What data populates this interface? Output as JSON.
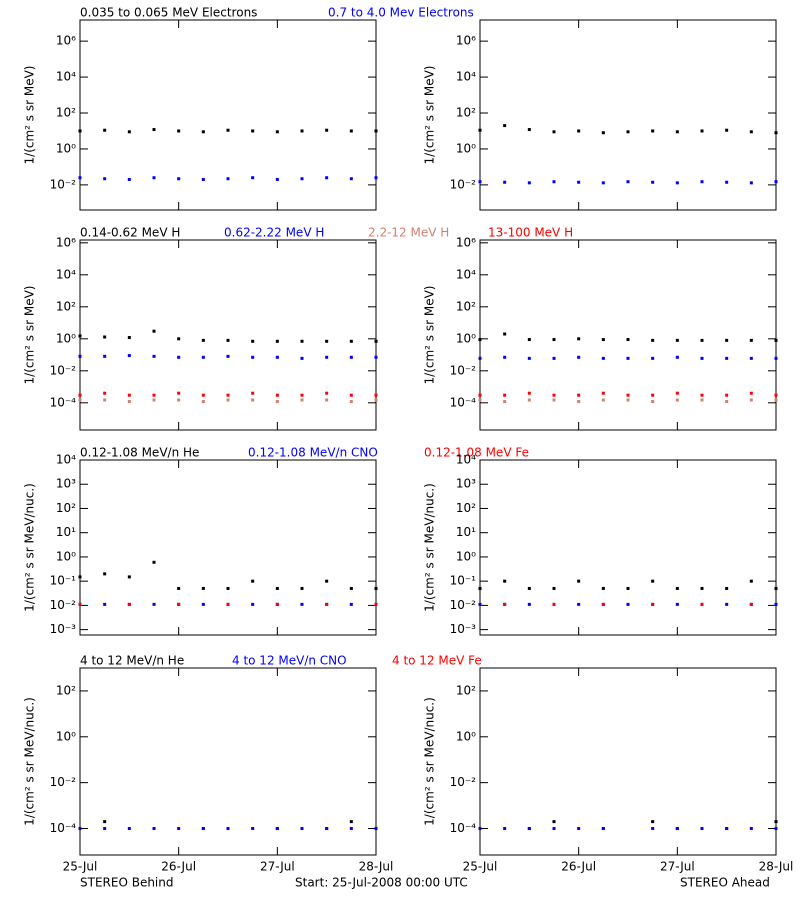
{
  "chart_data": [
    {
      "type": "scatter",
      "log_y": true,
      "ylabel": "1/(cm² s sr MeV)",
      "ylim": [
        0.0004,
        15000000
      ],
      "yticks": [
        {
          "value": 0.01,
          "label": "10⁻²"
        },
        {
          "value": 1,
          "label": "10⁰"
        },
        {
          "value": 100,
          "label": "10²"
        },
        {
          "value": 10000,
          "label": "10⁴"
        },
        {
          "value": 1000000,
          "label": "10⁶"
        }
      ],
      "xlim": [
        0,
        72
      ],
      "xticks": [
        0,
        24,
        48,
        72
      ],
      "x": [
        0,
        6,
        12,
        18,
        24,
        30,
        36,
        42,
        48,
        54,
        60,
        66,
        72
      ],
      "series": [
        {
          "name": "0.035 to 0.065 MeV Electrons",
          "color": "#000000",
          "values": [
            10,
            11,
            9,
            12,
            10,
            9,
            11,
            10,
            9,
            10,
            11,
            10,
            10
          ],
          "values_ahead": [
            11,
            20,
            12,
            9,
            10,
            8,
            9,
            10,
            9,
            10,
            11,
            9,
            8
          ]
        },
        {
          "name": "0.7 to 4.0 Mev Electrons",
          "color": "#0000ff",
          "values": [
            0.025,
            0.022,
            0.02,
            0.025,
            0.022,
            0.02,
            0.022,
            0.025,
            0.02,
            0.022,
            0.025,
            0.022,
            0.025
          ],
          "values_ahead": [
            0.015,
            0.014,
            0.013,
            0.015,
            0.014,
            0.013,
            0.015,
            0.014,
            0.013,
            0.015,
            0.014,
            0.013,
            0.015
          ]
        }
      ]
    },
    {
      "type": "scatter",
      "log_y": true,
      "ylabel": "1/(cm² s sr MeV)",
      "ylim": [
        2e-06,
        1500000
      ],
      "yticks": [
        {
          "value": 0.0001,
          "label": "10⁻⁴"
        },
        {
          "value": 0.01,
          "label": "10⁻²"
        },
        {
          "value": 1,
          "label": "10⁰"
        },
        {
          "value": 100,
          "label": "10²"
        },
        {
          "value": 10000,
          "label": "10⁴"
        },
        {
          "value": 1000000,
          "label": "10⁶"
        }
      ],
      "xlim": [
        0,
        72
      ],
      "xticks": [
        0,
        24,
        48,
        72
      ],
      "x": [
        0,
        6,
        12,
        18,
        24,
        30,
        36,
        42,
        48,
        54,
        60,
        66,
        72
      ],
      "series": [
        {
          "name": "0.14-0.62 MeV H",
          "color": "#000000",
          "values": [
            1.5,
            1.3,
            1.2,
            3,
            1.0,
            0.8,
            0.8,
            0.7,
            0.7,
            0.7,
            0.7,
            0.7,
            0.7
          ],
          "values_ahead": [
            0.9,
            2,
            0.9,
            0.9,
            1.0,
            0.9,
            0.9,
            0.8,
            0.8,
            0.8,
            0.8,
            0.8,
            0.8
          ]
        },
        {
          "name": "0.62-2.22 MeV H",
          "color": "#0000ff",
          "values": [
            0.08,
            0.08,
            0.09,
            0.08,
            0.07,
            0.07,
            0.08,
            0.07,
            0.07,
            0.06,
            0.07,
            0.07,
            0.07
          ],
          "values_ahead": [
            0.06,
            0.07,
            0.06,
            0.06,
            0.07,
            0.06,
            0.06,
            0.06,
            0.07,
            0.06,
            0.06,
            0.06,
            0.06
          ]
        },
        {
          "name": "2.2-12 MeV H",
          "color": "#d08070",
          "values": [
            0.00015,
            0.00015,
            0.00012,
            0.00015,
            0.00015,
            0.00012,
            0.00015,
            0.00015,
            0.00012,
            0.00015,
            0.00015,
            0.00012,
            0.00015
          ],
          "values_ahead": [
            0.00015,
            0.00012,
            0.00015,
            0.00015,
            0.00012,
            0.00015,
            0.00015,
            0.00012,
            0.00015,
            0.00015,
            0.00012,
            0.00015,
            0.00015
          ]
        },
        {
          "name": "13-100 MeV H",
          "color": "#ff0000",
          "values": [
            0.0003,
            0.0004,
            0.0003,
            0.0003,
            0.0004,
            0.0003,
            0.0003,
            0.0004,
            0.0003,
            0.0003,
            0.0004,
            0.0003,
            0.0003
          ],
          "values_ahead": [
            0.0003,
            0.0003,
            0.0004,
            0.0003,
            0.0003,
            0.0004,
            0.0003,
            0.0003,
            0.0004,
            0.0003,
            0.0003,
            0.0004,
            0.0003
          ]
        }
      ]
    },
    {
      "type": "scatter",
      "log_y": true,
      "ylabel": "1/(cm² s sr MeV/nuc.)",
      "ylim": [
        0.0006,
        10000
      ],
      "yticks": [
        {
          "value": 0.001,
          "label": "10⁻³"
        },
        {
          "value": 0.01,
          "label": "10⁻²"
        },
        {
          "value": 0.1,
          "label": "10⁻¹"
        },
        {
          "value": 1,
          "label": "10⁰"
        },
        {
          "value": 10,
          "label": "10¹"
        },
        {
          "value": 100,
          "label": "10²"
        },
        {
          "value": 1000,
          "label": "10³"
        },
        {
          "value": 10000,
          "label": "10⁴"
        }
      ],
      "xlim": [
        0,
        72
      ],
      "xticks": [
        0,
        24,
        48,
        72
      ],
      "x": [
        0,
        6,
        12,
        18,
        24,
        30,
        36,
        42,
        48,
        54,
        60,
        66,
        72
      ],
      "series": [
        {
          "name": "0.12-1.08 MeV/n He",
          "color": "#000000",
          "values": [
            0.15,
            0.2,
            0.15,
            0.6,
            0.05,
            0.05,
            0.05,
            0.1,
            0.05,
            0.05,
            0.1,
            0.05,
            0.05
          ],
          "values_ahead": [
            0.05,
            0.1,
            0.05,
            0.05,
            0.1,
            0.05,
            0.05,
            0.1,
            0.05,
            0.05,
            0.05,
            0.1,
            0.05
          ]
        },
        {
          "name": "0.12-1.08 MeV/n CNO",
          "color": "#0000ff",
          "values": [
            0.011,
            0.011,
            0.011,
            0.011,
            0.011,
            0.011,
            0.011,
            0.011,
            0.011,
            0.011,
            0.011,
            0.011,
            0.011
          ],
          "values_ahead": [
            0.011,
            0.011,
            0.011,
            0.011,
            0.011,
            0.011,
            0.011,
            0.011,
            0.011,
            0.011,
            0.011,
            0.011,
            0.011
          ]
        },
        {
          "name": "0.12-1.08 MeV Fe",
          "color": "#ff0000",
          "values": [
            0.011,
            null,
            0.011,
            null,
            0.011,
            null,
            0.011,
            null,
            0.011,
            null,
            0.011,
            null,
            0.011
          ],
          "values_ahead": [
            null,
            0.011,
            null,
            0.011,
            null,
            0.011,
            null,
            0.011,
            null,
            0.011,
            null,
            0.011,
            null
          ]
        }
      ]
    },
    {
      "type": "scatter",
      "log_y": true,
      "ylabel": "1/(cm² s sr MeV/nuc.)",
      "ylim": [
        7e-06,
        1000
      ],
      "yticks": [
        {
          "value": 0.0001,
          "label": "10⁻⁴"
        },
        {
          "value": 0.01,
          "label": "10⁻²"
        },
        {
          "value": 1,
          "label": "10⁰"
        },
        {
          "value": 100,
          "label": "10²"
        }
      ],
      "xlim": [
        0,
        72
      ],
      "xticks": [
        {
          "value": 0,
          "label": "25-Jul"
        },
        {
          "value": 24,
          "label": "26-Jul"
        },
        {
          "value": 48,
          "label": "27-Jul"
        },
        {
          "value": 72,
          "label": "28-Jul"
        }
      ],
      "x": [
        0,
        6,
        12,
        18,
        24,
        30,
        36,
        42,
        48,
        54,
        60,
        66,
        72
      ],
      "series": [
        {
          "name": "4 to 12 MeV/n He",
          "color": "#000000",
          "values": [
            0.0001,
            0.0002,
            null,
            0.0001,
            null,
            0.0001,
            0.0001,
            null,
            0.0001,
            null,
            0.0001,
            0.0002,
            0.0001
          ],
          "values_ahead": [
            0.0001,
            null,
            0.0001,
            0.0002,
            null,
            0.0001,
            null,
            0.0002,
            0.0001,
            null,
            0.0001,
            null,
            0.0002
          ]
        },
        {
          "name": "4 to 12 MeV/n CNO",
          "color": "#0000ff",
          "values": [
            0.0001,
            0.0001,
            0.0001,
            0.0001,
            0.0001,
            0.0001,
            0.0001,
            0.0001,
            0.0001,
            0.0001,
            0.0001,
            0.0001,
            0.0001
          ],
          "values_ahead": [
            0.0001,
            0.0001,
            0.0001,
            0.0001,
            0.0001,
            0.0001,
            null,
            0.0001,
            0.0001,
            0.0001,
            0.0001,
            0.0001,
            0.0001
          ]
        },
        {
          "name": "4 to 12 MeV Fe",
          "color": "#ff0000",
          "values": [
            null,
            null,
            null,
            null,
            null,
            null,
            null,
            null,
            null,
            null,
            null,
            null,
            null
          ],
          "values_ahead": [
            null,
            null,
            null,
            null,
            null,
            null,
            null,
            null,
            null,
            null,
            null,
            null,
            null
          ]
        }
      ]
    }
  ],
  "footer": {
    "left": "STEREO Behind",
    "center": "Start: 25-Jul-2008 00:00 UTC",
    "right": "STEREO Ahead"
  }
}
